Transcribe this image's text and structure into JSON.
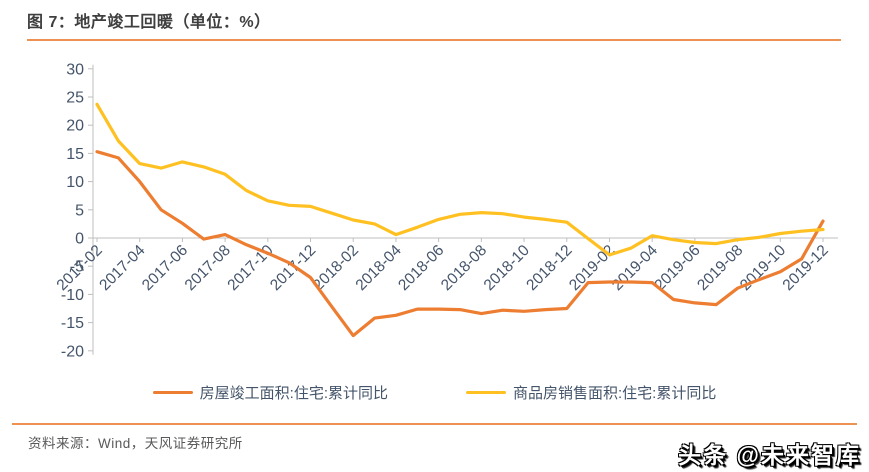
{
  "title": "图 7：地产竣工回暖（单位：%）",
  "footer": {
    "source": "资料来源：Wind，天风证券研究所"
  },
  "watermark": "头条 @未来智库",
  "colors": {
    "accent_rule": "#ed9253",
    "axis_line": "#bfbfbf",
    "axis_label": "#44546a",
    "title_text": "#3f3f3f",
    "source_text": "#595959"
  },
  "chart_data": {
    "type": "line",
    "title": "地产竣工回暖",
    "unit": "%",
    "ylim": [
      -20,
      30
    ],
    "y_ticks": [
      30,
      25,
      20,
      15,
      10,
      5,
      0,
      -5,
      -10,
      -15,
      -20
    ],
    "grid": "category-axis-at-zero-only",
    "legend_position": "bottom",
    "x": [
      "2017-02",
      "2017-03",
      "2017-04",
      "2017-05",
      "2017-06",
      "2017-07",
      "2017-08",
      "2017-09",
      "2017-10",
      "2017-11",
      "2017-12",
      "2018-01",
      "2018-02",
      "2018-03",
      "2018-04",
      "2018-05",
      "2018-06",
      "2018-07",
      "2018-08",
      "2018-09",
      "2018-10",
      "2018-11",
      "2018-12",
      "2019-01",
      "2019-02",
      "2019-03",
      "2019-04",
      "2019-05",
      "2019-06",
      "2019-07",
      "2019-08",
      "2019-09",
      "2019-10",
      "2019-11",
      "2019-12"
    ],
    "x_tick_labels": [
      "2017-02",
      "2017-04",
      "2017-06",
      "2017-08",
      "2017-10",
      "2017-12",
      "2018-02",
      "2018-04",
      "2018-06",
      "2018-08",
      "2018-10",
      "2018-12",
      "2019-02",
      "2019-04",
      "2019-06",
      "2019-08",
      "2019-10",
      "2019-12"
    ],
    "series": [
      {
        "name": "房屋竣工面积:住宅:累计同比",
        "color": "#ed7d31",
        "values": [
          15.3,
          14.2,
          10.0,
          5.0,
          2.6,
          -0.2,
          0.6,
          -1.2,
          -2.7,
          -4.4,
          -7.0,
          -12.2,
          -17.3,
          -14.2,
          -13.7,
          -12.6,
          -12.6,
          -12.7,
          -13.4,
          -12.8,
          -13.0,
          -12.7,
          -12.5,
          -7.9,
          -7.8,
          -7.8,
          -7.9,
          -10.9,
          -11.5,
          -11.8,
          -8.9,
          -7.4,
          -6.0,
          -3.7,
          3.0
        ]
      },
      {
        "name": "商品房销售面积:住宅:累计同比",
        "color": "#ffc022",
        "values": [
          23.7,
          17.2,
          13.2,
          12.4,
          13.5,
          12.6,
          11.3,
          8.4,
          6.6,
          5.8,
          5.6,
          4.4,
          3.2,
          2.5,
          0.6,
          1.9,
          3.3,
          4.2,
          4.5,
          4.3,
          3.7,
          3.3,
          2.8,
          -0.1,
          -3.0,
          -1.8,
          0.4,
          -0.3,
          -0.8,
          -1.0,
          -0.3,
          0.1,
          0.8,
          1.2,
          1.5
        ]
      }
    ]
  }
}
